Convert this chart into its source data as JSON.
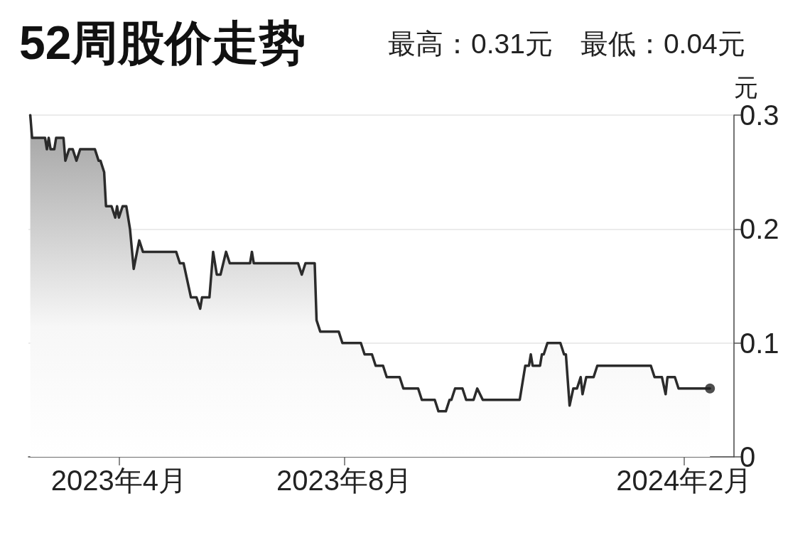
{
  "chart_data": {
    "type": "area",
    "title": "52周股价走势",
    "subtitle": "最高：0.31元　最低：0.04元",
    "ylabel": "元",
    "xlim": [
      "2023-02-11",
      "2024-02-28"
    ],
    "xticks": [
      {
        "value": "2023-04",
        "label": "2023年4月"
      },
      {
        "value": "2023-08",
        "label": "2023年8月"
      },
      {
        "value": "2024-02",
        "label": "2024年2月"
      }
    ],
    "ylim": [
      0,
      0.3
    ],
    "yticks": [
      0,
      0.1,
      0.2,
      0.3
    ],
    "grid": "y",
    "series": [
      {
        "color": "#2b2b2b",
        "x": [
          "2023-02-12",
          "2023-02-13",
          "2023-02-20",
          "2023-02-21",
          "2023-02-22",
          "2023-02-23",
          "2023-02-25",
          "2023-02-26",
          "2023-03-02",
          "2023-03-03",
          "2023-03-05",
          "2023-03-07",
          "2023-03-09",
          "2023-03-11",
          "2023-03-19",
          "2023-03-21",
          "2023-03-22",
          "2023-03-24",
          "2023-03-25",
          "2023-03-28",
          "2023-03-30",
          "2023-03-31",
          "2023-04-01",
          "2023-04-03",
          "2023-04-05",
          "2023-04-07",
          "2023-04-09",
          "2023-04-12",
          "2023-04-14",
          "2023-05-02",
          "2023-05-04",
          "2023-05-06",
          "2023-05-10",
          "2023-05-13",
          "2023-05-15",
          "2023-05-16",
          "2023-05-20",
          "2023-05-22",
          "2023-05-24",
          "2023-05-26",
          "2023-05-29",
          "2023-05-31",
          "2023-06-11",
          "2023-06-12",
          "2023-06-13",
          "2023-07-07",
          "2023-07-09",
          "2023-07-11",
          "2023-07-16",
          "2023-07-17",
          "2023-07-19",
          "2023-07-29",
          "2023-07-31",
          "2023-08-10",
          "2023-08-12",
          "2023-08-16",
          "2023-08-18",
          "2023-08-22",
          "2023-08-24",
          "2023-08-31",
          "2023-09-02",
          "2023-09-10",
          "2023-09-12",
          "2023-09-19",
          "2023-09-21",
          "2023-09-25",
          "2023-09-27",
          "2023-09-28",
          "2023-09-30",
          "2023-10-04",
          "2023-10-06",
          "2023-10-10",
          "2023-10-12",
          "2023-10-15",
          "2023-11-04",
          "2023-11-07",
          "2023-11-09",
          "2023-11-10",
          "2023-11-11",
          "2023-11-15",
          "2023-11-16",
          "2023-11-17",
          "2023-11-19",
          "2023-11-26",
          "2023-11-28",
          "2023-11-29",
          "2023-12-01",
          "2023-12-03",
          "2023-12-05",
          "2023-12-07",
          "2023-12-08",
          "2023-12-10",
          "2023-12-14",
          "2023-12-16",
          "2024-01-14",
          "2024-01-16",
          "2024-01-20",
          "2024-01-22",
          "2024-01-23",
          "2024-01-27",
          "2024-01-29",
          "2024-02-15"
        ],
        "values": [
          0.3,
          0.28,
          0.28,
          0.27,
          0.28,
          0.27,
          0.27,
          0.28,
          0.28,
          0.26,
          0.27,
          0.27,
          0.26,
          0.27,
          0.27,
          0.26,
          0.26,
          0.25,
          0.22,
          0.22,
          0.21,
          0.22,
          0.21,
          0.22,
          0.22,
          0.2,
          0.165,
          0.19,
          0.18,
          0.18,
          0.17,
          0.17,
          0.14,
          0.14,
          0.13,
          0.14,
          0.14,
          0.18,
          0.16,
          0.16,
          0.18,
          0.17,
          0.17,
          0.18,
          0.17,
          0.17,
          0.16,
          0.17,
          0.17,
          0.12,
          0.11,
          0.11,
          0.1,
          0.1,
          0.09,
          0.09,
          0.08,
          0.08,
          0.07,
          0.07,
          0.06,
          0.06,
          0.05,
          0.05,
          0.04,
          0.04,
          0.05,
          0.05,
          0.06,
          0.06,
          0.05,
          0.05,
          0.06,
          0.05,
          0.05,
          0.08,
          0.08,
          0.09,
          0.08,
          0.08,
          0.09,
          0.09,
          0.1,
          0.1,
          0.09,
          0.09,
          0.045,
          0.06,
          0.06,
          0.07,
          0.055,
          0.07,
          0.07,
          0.08,
          0.08,
          0.07,
          0.07,
          0.055,
          0.07,
          0.07,
          0.06,
          0.06
        ]
      },
      {
        "type": "scatter",
        "color": "#222222",
        "marker": "circle",
        "x": [
          "2024-02-15"
        ],
        "values": [
          0.06
        ]
      }
    ]
  }
}
